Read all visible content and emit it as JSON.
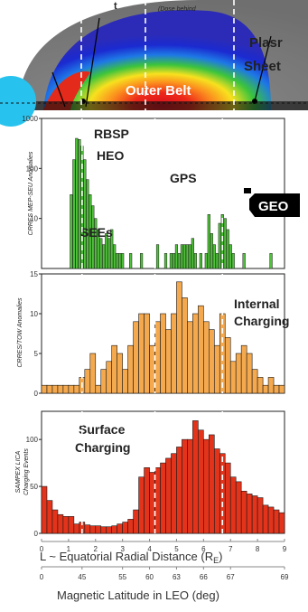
{
  "chart_data": [
    {
      "type": "heatmap",
      "region_labels": {
        "inner_partial": "t",
        "note": "(Dose behind",
        "plasma_sheet_1": "Plasr",
        "plasma_sheet_2": "Sheet",
        "outer_belt": "Outer  Belt"
      }
    },
    {
      "type": "bar",
      "yscale": "log",
      "ylim": [
        1,
        1000
      ],
      "yticks": [
        "1000",
        "100",
        "10"
      ],
      "ylabel": "CRRES MEP-SEU Anomalies",
      "annotations": [
        "RBSP",
        "HEO",
        "GPS",
        "SEEs",
        "GEO"
      ],
      "x": [
        1.1,
        1.2,
        1.3,
        1.4,
        1.5,
        1.6,
        1.7,
        1.8,
        1.9,
        2.0,
        2.1,
        2.2,
        2.3,
        2.4,
        2.5,
        2.6,
        2.7,
        2.8,
        2.9,
        3.0,
        3.3,
        3.7,
        4.3,
        4.6,
        4.8,
        4.9,
        5.0,
        5.1,
        5.2,
        5.3,
        5.4,
        5.5,
        5.6,
        5.7,
        5.9,
        6.1,
        6.2,
        6.3,
        6.4,
        6.5,
        6.6,
        6.7,
        6.8,
        6.9,
        7.0,
        7.1,
        7.5,
        8.5
      ],
      "values": [
        30,
        150,
        400,
        380,
        280,
        150,
        60,
        30,
        18,
        10,
        6,
        4,
        3,
        5,
        4,
        6,
        3,
        2,
        2,
        2,
        2,
        2,
        3,
        2,
        2,
        2,
        3,
        2,
        3,
        3,
        3,
        3,
        4,
        2,
        2,
        2,
        12,
        5,
        3,
        2,
        8,
        12,
        10,
        6,
        3,
        2,
        2,
        2
      ]
    },
    {
      "type": "bar",
      "ylim": [
        0,
        15
      ],
      "yticks": [
        "0",
        "5",
        "10",
        "15"
      ],
      "ylabel": "CRRES/TOW Anomalies",
      "annotations": [
        "Internal",
        "Charging"
      ],
      "x": [
        0.1,
        0.3,
        0.5,
        0.7,
        0.9,
        1.1,
        1.3,
        1.5,
        1.7,
        1.9,
        2.1,
        2.3,
        2.5,
        2.7,
        2.9,
        3.1,
        3.3,
        3.5,
        3.7,
        3.9,
        4.1,
        4.3,
        4.5,
        4.7,
        4.9,
        5.1,
        5.3,
        5.5,
        5.7,
        5.9,
        6.1,
        6.3,
        6.5,
        6.7,
        6.9,
        7.1,
        7.3,
        7.5,
        7.7,
        7.9,
        8.1,
        8.3,
        8.5,
        8.7,
        8.9
      ],
      "values": [
        1,
        1,
        1,
        1,
        1,
        1,
        1,
        2,
        3,
        5,
        1,
        3,
        4,
        6,
        5,
        3,
        6,
        9,
        10,
        10,
        6,
        9,
        10,
        8,
        10,
        14,
        12,
        9,
        10,
        11,
        9,
        8,
        6,
        10,
        7,
        4,
        5,
        6,
        5,
        3,
        2,
        1,
        2,
        1,
        1
      ]
    },
    {
      "type": "bar",
      "ylim": [
        0,
        130
      ],
      "yticks": [
        "0",
        "50",
        "100"
      ],
      "ylabel_1": "SAMPEX LICA",
      "ylabel_2": "Charging Events",
      "annotations": [
        "Surface",
        "Charging"
      ],
      "x": [
        0.1,
        0.3,
        0.5,
        0.7,
        0.9,
        1.1,
        1.3,
        1.5,
        1.7,
        1.9,
        2.1,
        2.3,
        2.5,
        2.7,
        2.9,
        3.1,
        3.3,
        3.5,
        3.7,
        3.9,
        4.1,
        4.3,
        4.5,
        4.7,
        4.9,
        5.1,
        5.3,
        5.5,
        5.7,
        5.9,
        6.1,
        6.3,
        6.5,
        6.7,
        6.9,
        7.1,
        7.3,
        7.5,
        7.7,
        7.9,
        8.1,
        8.3,
        8.5,
        8.7,
        8.9
      ],
      "values": [
        50,
        35,
        25,
        20,
        18,
        18,
        10,
        12,
        9,
        8,
        8,
        7,
        7,
        8,
        10,
        12,
        15,
        25,
        60,
        70,
        65,
        70,
        75,
        80,
        85,
        92,
        100,
        100,
        120,
        110,
        100,
        105,
        90,
        85,
        75,
        60,
        55,
        45,
        42,
        40,
        38,
        30,
        28,
        25,
        22
      ],
      "xlabel": "L ~ Equatorial Radial Distance (R",
      "xlabel_sub": "E",
      "xticks": [
        "0",
        "1",
        "2",
        "3",
        "4",
        "5",
        "6",
        "7",
        "8",
        "9"
      ],
      "xlim": [
        0,
        9
      ],
      "x2label": "Magnetic Latitude in LEO (deg)",
      "x2ticks": [
        "0",
        "45",
        "55",
        "60",
        "63",
        "66",
        "67",
        "69"
      ],
      "x2_at_L": [
        0,
        1.5,
        3,
        4,
        5,
        6,
        7,
        9
      ],
      "dashed_L": [
        1.5,
        4.2,
        6.7
      ]
    }
  ],
  "colors": {
    "green": "#4fc23a",
    "orange": "#f5a94e",
    "red": "#e4331b",
    "outline": "#1a1a1a"
  }
}
